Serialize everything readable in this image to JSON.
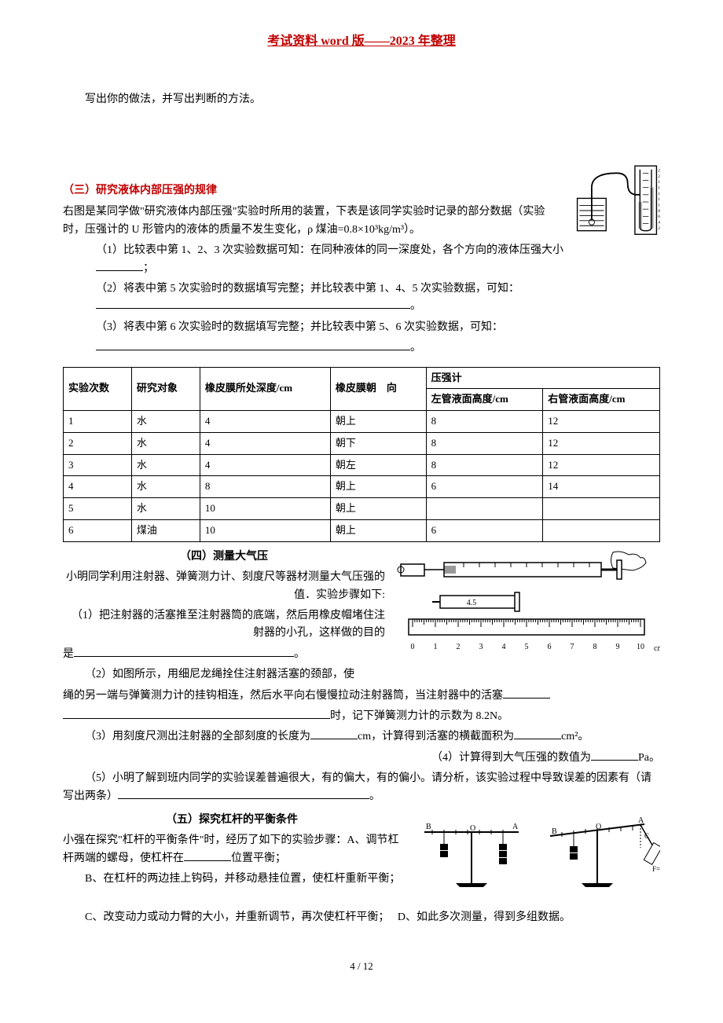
{
  "header": "考试资料 word 版——2023 年整理",
  "intro_line": "写出你的做法，并写出判断的方法。",
  "sec3": {
    "title": "（三）研究液体内部压强的规律",
    "intro": "右图是某同学做\"研究液体内部压强\"实验时所用的装置，下表是该同学实验时记录的部分数据（实验时，压强计的 U 形管内的液体的质量不发生变化，ρ 煤油=0.8×10³kg/m³）。",
    "q1": "（1）比较表中第 1、2、3 次实验数据可知：在同种液体的同一深度处，各个方向的液体压强大小",
    "q1_suffix": "；",
    "q2": "（2）将表中第 5 次实验时的数据填写完整；并比较表中第 1、4、5 次实验数据，可知：",
    "q2_suffix": "。",
    "q3": "（3）将表中第 6 次实验时的数据填写完整；并比较表中第 5、6 次实验数据，可知：",
    "q3_suffix": "。"
  },
  "table": {
    "headers": {
      "c1": "实验次数",
      "c2": "研究对象",
      "c3": "橡皮膜所处深度/cm",
      "c4": "橡皮膜朝　向",
      "c5": "压强计",
      "c5a": "左管液面高度/cm",
      "c5b": "右管液面高度/cm"
    },
    "rows": [
      [
        "1",
        "水",
        "4",
        "朝上",
        "8",
        "12"
      ],
      [
        "2",
        "水",
        "4",
        "朝下",
        "8",
        "12"
      ],
      [
        "3",
        "水",
        "4",
        "朝左",
        "8",
        "12"
      ],
      [
        "4",
        "水",
        "8",
        "朝上",
        "6",
        "14"
      ],
      [
        "5",
        "水",
        "10",
        "朝上",
        "",
        ""
      ],
      [
        "6",
        "煤油",
        "10",
        "朝上",
        "6",
        ""
      ]
    ]
  },
  "sec4": {
    "title": "（四）测量大气压",
    "intro": "小明同学利用注射器、弹簧测力计、刻度尺等器材测量大气压强的值．实验步骤如下:",
    "q1a": "（1）把注射器的活塞推至注射器筒的底端，然后用橡皮帽堵住注射器的小孔，这样做的目的",
    "q1b": "是",
    "q1_suffix": "。",
    "q2a": "（2）如图所示，用细尼龙绳拴住注射器活塞的颈部，使",
    "q2b": "绳的另一端与弹簧测力计的挂钩相连，然后水平向右慢慢拉动注射器筒，当注射器中的活塞",
    "q2c": "时，记下弹簧测力计的示数为 8.2N。",
    "q3": "（3）用刻度尺测出注射器的全部刻度的长度为",
    "q3_mid": "cm，计算得到活塞的横截面积为",
    "q3_suffix": "cm²。",
    "q4": "（4）计算得到大气压强的数值为",
    "q4_suffix": "Pa。",
    "q5": "（5）小明了解到班内同学的实验误差普遍很大，有的偏大，有的偏小。请分析，该实验过程中导致误差的因素有（请写出两条）",
    "q5_suffix": "。",
    "ruler": {
      "label_45": "4.5",
      "ticks": [
        "0",
        "1",
        "2",
        "3",
        "4",
        "5",
        "6",
        "7",
        "8",
        "9",
        "10"
      ],
      "unit": "cm"
    }
  },
  "sec5": {
    "title": "（五）探究杠杆的平衡条件",
    "intro": "小强在探究\"杠杆的平衡条件\"时，经历了如下的实验步骤：A、调节杠杆两端的螺母，使杠杆在",
    "intro_mid": "位置平衡；",
    "b": "B、在杠杆的两边挂上钩码，并移动悬挂位置，使杠杆重新平衡；",
    "c": "C、改变动力或动力臂的大小，并重新调节，再次使杠杆平衡；",
    "d": "D、如此多次测量，得到多组数据。"
  },
  "page_num": "4 / 12",
  "colors": {
    "accent": "#c00000",
    "text": "#000000",
    "bg": "#ffffff"
  }
}
